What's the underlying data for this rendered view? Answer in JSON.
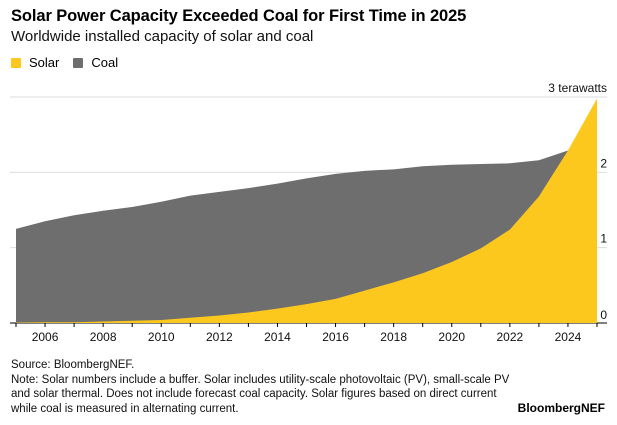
{
  "chart_data": {
    "type": "area",
    "title": "Solar Power Capacity Exceeded Coal for First Time in 2025",
    "subtitle": "Worldwide installed capacity of solar and coal",
    "ylabel": "",
    "xlabel": "",
    "unit_label": "3 terawatts",
    "x": [
      2005,
      2006,
      2007,
      2008,
      2009,
      2010,
      2011,
      2012,
      2013,
      2014,
      2015,
      2016,
      2017,
      2018,
      2019,
      2020,
      2021,
      2022,
      2023,
      2024,
      2025
    ],
    "series": [
      {
        "name": "Coal",
        "color": "#6e6e6e",
        "values": [
          1.25,
          1.35,
          1.43,
          1.49,
          1.54,
          1.61,
          1.69,
          1.74,
          1.79,
          1.85,
          1.92,
          1.98,
          2.02,
          2.04,
          2.08,
          2.1,
          2.11,
          2.12,
          2.16,
          2.29,
          null
        ]
      },
      {
        "name": "Solar",
        "color": "#fdc81e",
        "values": [
          0.005,
          0.01,
          0.01,
          0.02,
          0.03,
          0.04,
          0.07,
          0.1,
          0.14,
          0.19,
          0.25,
          0.32,
          0.43,
          0.54,
          0.66,
          0.81,
          0.99,
          1.24,
          1.68,
          2.29,
          2.98
        ]
      }
    ],
    "xlim": [
      2005,
      2025
    ],
    "ylim": [
      0,
      3
    ],
    "yticks": [
      "0",
      "1",
      "2",
      "3 terawatts"
    ],
    "xtick_labels": [
      "2006",
      "2008",
      "2010",
      "2012",
      "2014",
      "2016",
      "2018",
      "2020",
      "2022",
      "2024"
    ],
    "grid": true,
    "legend_placement": "top-left",
    "y_axis_side": "right"
  },
  "legend": [
    {
      "label": "Solar",
      "color": "#fdc81e"
    },
    {
      "label": "Coal",
      "color": "#6e6e6e"
    }
  ],
  "footer": {
    "source": "Source: BloombergNEF.",
    "note": "Note: Solar numbers include a buffer. Solar includes utility-scale photovoltaic (PV), small-scale PV and solar thermal. Does not include forecast coal capacity. Solar figures based on direct current while coal is measured in alternating current.",
    "brand": "BloombergNEF"
  }
}
